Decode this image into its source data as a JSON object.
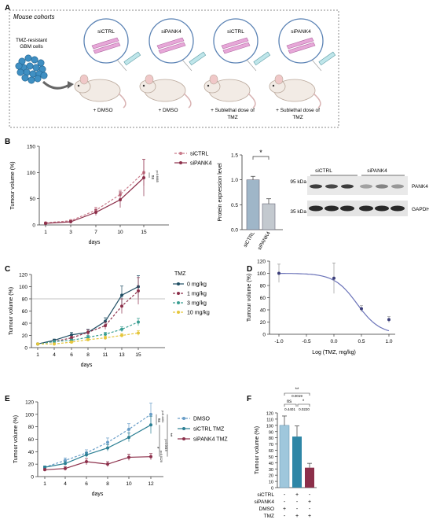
{
  "panels": {
    "A": {
      "letter": "A",
      "box_title": "Mouse cohorts",
      "cells_label_1": "TMZ-resistant",
      "cells_label_2": "GBM cells",
      "circles": [
        "siCTRL",
        "siPANK4",
        "siCTRL",
        "siPANK4"
      ],
      "treatments": [
        [
          "+ DMSO"
        ],
        [
          "+ DMSO"
        ],
        [
          "+ Sublethal dose of",
          "TMZ"
        ],
        [
          "+ Sublethal dose of",
          "TMZ"
        ]
      ]
    },
    "B": {
      "letter": "B"
    },
    "C": {
      "letter": "C"
    },
    "D": {
      "letter": "D"
    },
    "E": {
      "letter": "E"
    },
    "F": {
      "letter": "F"
    }
  },
  "colors": {
    "ctrl": "#c97b8b",
    "pank4": "#8c2f4a",
    "tmz0": "#1f4e63",
    "tmz1": "#8c2f4a",
    "tmz3": "#3a9e92",
    "tmz10": "#e5c63c",
    "dmso": "#6a9ec8",
    "siCTRLtmz": "#2b7f93",
    "bar_ctrl": "#9fb6c8",
    "bar_pank4": "#c3c9cf",
    "bar_f_dmso": "#9fc7dc",
    "bar_f_ctrl": "#2e86a6",
    "bar_f_pank4": "#8c2f4a"
  },
  "chart_data": [
    {
      "id": "B-growth",
      "type": "line",
      "ylabel": "Tumour volume (%)",
      "xlabel": "days",
      "x": [
        1,
        3,
        7,
        10,
        15
      ],
      "ylim": [
        0,
        150
      ],
      "yticks": [
        "0",
        "50",
        "100",
        "150"
      ],
      "series": [
        {
          "name": "siCTRL",
          "values": [
            4,
            8,
            28,
            58,
            100
          ],
          "err": [
            1,
            2,
            6,
            8,
            25
          ]
        },
        {
          "name": "siPANK4",
          "values": [
            3,
            6,
            24,
            48,
            90
          ],
          "err": [
            1,
            2,
            6,
            15,
            35
          ]
        }
      ],
      "annotations": [
        "ns",
        "p=0.6685"
      ]
    },
    {
      "id": "B-bar",
      "type": "bar",
      "ylabel": "Protein expression level",
      "categories": [
        "siCTRL",
        "siPANK4"
      ],
      "values": [
        1.0,
        0.52
      ],
      "err": [
        0.07,
        0.1
      ],
      "ylim": [
        0,
        1.5
      ],
      "yticks": [
        "0.0",
        "0.5",
        "1.0",
        "1.5"
      ],
      "annotations": [
        "*"
      ]
    },
    {
      "id": "C",
      "type": "line",
      "ylabel": "Tumour volume (%)",
      "xlabel": "days",
      "legend_title": "TMZ",
      "x": [
        1,
        4,
        6,
        8,
        11,
        13,
        15
      ],
      "ylim": [
        0,
        120
      ],
      "yticks": [
        "0",
        "20",
        "40",
        "60",
        "80",
        "100",
        "120"
      ],
      "reference_line": 80,
      "series": [
        {
          "name": "0 mg/kg",
          "values": [
            6,
            12,
            21,
            25,
            43,
            86,
            100
          ],
          "err": [
            1,
            2,
            4,
            5,
            6,
            15,
            18
          ]
        },
        {
          "name": "1 mg/kg",
          "values": [
            6,
            10,
            16,
            25,
            36,
            68,
            93
          ],
          "err": [
            1,
            2,
            3,
            4,
            6,
            12,
            22
          ]
        },
        {
          "name": "3 mg/kg",
          "values": [
            6,
            10,
            12,
            17,
            22,
            30,
            42
          ],
          "err": [
            1,
            1,
            2,
            3,
            3,
            4,
            6
          ]
        },
        {
          "name": "10 mg/kg",
          "values": [
            6,
            6,
            9,
            13,
            16,
            20,
            24
          ],
          "err": [
            1,
            1,
            2,
            2,
            3,
            3,
            4
          ]
        }
      ]
    },
    {
      "id": "D",
      "type": "scatter",
      "ylabel": "Tumour volume (%)",
      "xlabel": "Log (TMZ, mg/kg)",
      "x": [
        -1.0,
        0.0,
        0.5,
        1.0
      ],
      "values": [
        100,
        92,
        42,
        24
      ],
      "err": [
        15,
        25,
        5,
        5
      ],
      "xlim": [
        -1.0,
        1.0
      ],
      "ylim": [
        0,
        120
      ],
      "xticks": [
        "-1.0",
        "-0.5",
        "0.0",
        "0.5",
        "1.0"
      ],
      "yticks": [
        "0",
        "20",
        "40",
        "60",
        "80",
        "100",
        "120"
      ]
    },
    {
      "id": "E",
      "type": "line",
      "ylabel": "Tumour volume (%)",
      "xlabel": "days",
      "x": [
        1,
        4,
        6,
        8,
        10,
        12
      ],
      "ylim": [
        0,
        120
      ],
      "yticks": [
        "0",
        "20",
        "40",
        "60",
        "80",
        "100",
        "120"
      ],
      "series": [
        {
          "name": "DMSO",
          "values": [
            15,
            26,
            38,
            55,
            76,
            100
          ],
          "err": [
            2,
            4,
            5,
            7,
            9,
            18
          ]
        },
        {
          "name": "siCTRL TMZ",
          "values": [
            15,
            21,
            35,
            46,
            63,
            83
          ],
          "err": [
            2,
            3,
            4,
            5,
            7,
            14
          ]
        },
        {
          "name": "siPANK4 TMZ",
          "values": [
            11,
            13,
            24,
            20,
            31,
            32
          ],
          "err": [
            2,
            3,
            5,
            4,
            5,
            5
          ]
        }
      ],
      "annotations": [
        "ns",
        "p=0.4401",
        "**",
        "p=0.0019",
        "*",
        "p=0.0220"
      ]
    },
    {
      "id": "F",
      "type": "bar",
      "ylabel": "Tumour volume (%)",
      "values": [
        100,
        82,
        32
      ],
      "err": [
        15,
        17,
        7
      ],
      "ylim": [
        0,
        120
      ],
      "yticks": [
        "0",
        "10",
        "20",
        "30",
        "40",
        "50",
        "60",
        "70",
        "80",
        "90",
        "100",
        "110",
        "120"
      ],
      "row_labels": [
        "siCTRL",
        "siPANK4",
        "DMSO",
        "TMZ"
      ],
      "row_values": [
        [
          "-",
          "+",
          "-"
        ],
        [
          "-",
          "-",
          "+"
        ],
        [
          "+",
          "-",
          "-"
        ],
        [
          "-",
          "+",
          "+"
        ]
      ],
      "annotations": [
        "**",
        "0.0019",
        "ns",
        "0.4401",
        "*",
        "0.0220"
      ]
    }
  ],
  "western": {
    "lane_groups": [
      "siCTRL",
      "siPANK4"
    ],
    "markers": [
      "95 kDa",
      "35 kDa"
    ],
    "bands": [
      "PANK4",
      "GAPDH"
    ]
  }
}
